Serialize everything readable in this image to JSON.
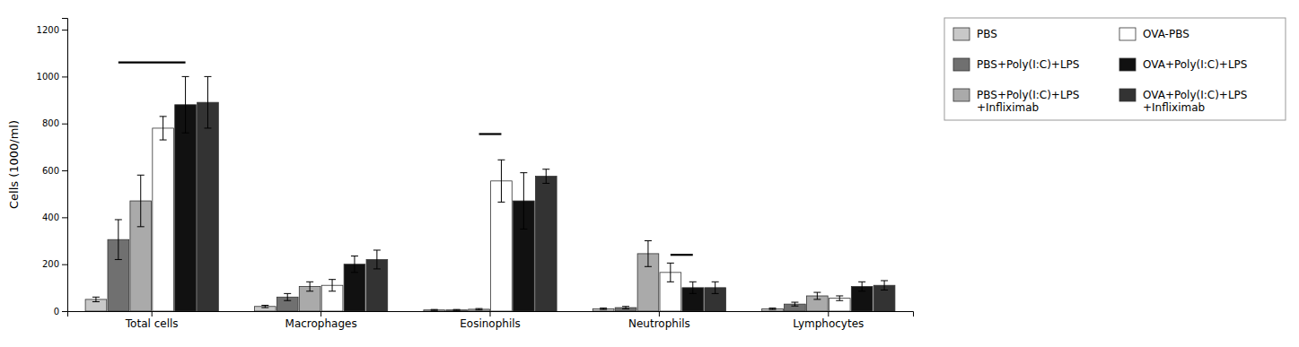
{
  "chart_data": {
    "type": "bar",
    "categories": [
      "Total cells",
      "Macrophages",
      "Eosinophils",
      "Neutrophils",
      "Lymphocytes"
    ],
    "series": [
      {
        "name": "PBS",
        "color": "#c8c8c8",
        "values": [
          50,
          20,
          5,
          10,
          10
        ],
        "errors": [
          10,
          5,
          2,
          3,
          3
        ]
      },
      {
        "name": "PBS+Poly(I:C)+LPS",
        "color": "#707070",
        "values": [
          305,
          60,
          5,
          15,
          30
        ],
        "errors": [
          85,
          15,
          2,
          5,
          8
        ]
      },
      {
        "name": "PBS+Poly(I:C)+LPS\n+Infliximab",
        "color": "#aaaaaa",
        "values": [
          470,
          105,
          8,
          245,
          65
        ],
        "errors": [
          110,
          20,
          3,
          55,
          15
        ]
      },
      {
        "name": "OVA-PBS",
        "color": "#ffffff",
        "values": [
          780,
          110,
          555,
          165,
          55
        ],
        "errors": [
          50,
          25,
          90,
          40,
          10
        ]
      },
      {
        "name": "OVA+Poly(I:C)+LPS",
        "color": "#111111",
        "values": [
          880,
          200,
          470,
          100,
          105
        ],
        "errors": [
          120,
          35,
          120,
          25,
          20
        ]
      },
      {
        "name": "OVA+Poly(I:C)+LPS\n+Infliximab",
        "color": "#333333",
        "values": [
          890,
          220,
          575,
          100,
          110
        ],
        "errors": [
          110,
          40,
          30,
          25,
          20
        ]
      }
    ],
    "significance_lines": [
      {
        "category": "Total cells",
        "from": "PBS+Poly(I:C)+LPS",
        "to": "OVA+Poly(I:C)+LPS",
        "value": 1060
      },
      {
        "category": "Eosinophils",
        "from": "PBS+Poly(I:C)+LPS\n+Infliximab",
        "to": "OVA-PBS",
        "value": 755
      },
      {
        "category": "Neutrophils",
        "from": "OVA-PBS",
        "to": "OVA+Poly(I:C)+LPS",
        "value": 240
      }
    ],
    "ylabel": "Cells (1000/ml)",
    "ylim": [
      0,
      1250
    ],
    "yticks": [
      0,
      200,
      400,
      600,
      800,
      1000,
      1200
    ],
    "grid": false,
    "legend": "upper right"
  }
}
